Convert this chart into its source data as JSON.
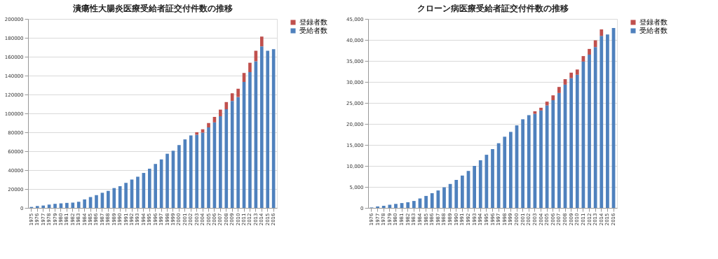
{
  "chart_data": [
    {
      "type": "bar",
      "title": "潰瘍性大腸炎医療受給者証交付件数の推移",
      "stacked": true,
      "grid": "y",
      "legend": "right",
      "categories": [
        "1975",
        "1976",
        "1977",
        "1978",
        "1979",
        "1980",
        "1981",
        "1982",
        "1983",
        "1984",
        "1985",
        "1986",
        "1987",
        "1988",
        "1989",
        "1990",
        "1991",
        "1992",
        "1993",
        "1994",
        "1995",
        "1996",
        "1997",
        "1998",
        "1999",
        "2000",
        "2001",
        "2002",
        "2003",
        "2004",
        "2005",
        "2006",
        "2007",
        "2008",
        "2009",
        "2010",
        "2011",
        "2012",
        "2013",
        "2014",
        "2015",
        "2016"
      ],
      "series": [
        {
          "name": "受給者数",
          "color": "#4f81bd",
          "values": [
            1000,
            2000,
            2500,
            3500,
            4300,
            4800,
            5300,
            5600,
            6500,
            9000,
            11500,
            13500,
            16000,
            18000,
            21000,
            23000,
            26500,
            30000,
            33000,
            37000,
            41500,
            46500,
            51300,
            57300,
            60500,
            66500,
            72500,
            76700,
            77400,
            79700,
            85200,
            90500,
            97000,
            104400,
            113200,
            117300,
            133300,
            143700,
            155200,
            171000,
            166300,
            168000
          ]
        },
        {
          "name": "登録者数",
          "color": "#c0504d",
          "values": [
            null,
            null,
            null,
            null,
            null,
            null,
            null,
            null,
            null,
            null,
            null,
            null,
            null,
            null,
            null,
            null,
            null,
            null,
            null,
            null,
            null,
            null,
            null,
            null,
            null,
            null,
            null,
            null,
            2700,
            3500,
            4700,
            5800,
            7000,
            7600,
            8100,
            8800,
            9500,
            9900,
            11100,
            10300,
            null,
            null
          ]
        }
      ],
      "ylim": [
        0,
        200000
      ],
      "yticks": [
        0,
        20000,
        40000,
        60000,
        80000,
        100000,
        120000,
        140000,
        160000,
        180000,
        200000
      ]
    },
    {
      "type": "bar",
      "title": "クローン病医療受給者証交付件数の推移",
      "stacked": true,
      "grid": "y",
      "legend": "right",
      "categories": [
        "1976",
        "1977",
        "1978",
        "1979",
        "1980",
        "1981",
        "1982",
        "1983",
        "1984",
        "1985",
        "1986",
        "1987",
        "1988",
        "1989",
        "1990",
        "1991",
        "1992",
        "1993",
        "1994",
        "1995",
        "1996",
        "1997",
        "1998",
        "1999",
        "2000",
        "2001",
        "2002",
        "2003",
        "2004",
        "2005",
        "2006",
        "2007",
        "2008",
        "2009",
        "2010",
        "2011",
        "2012",
        "2013",
        "2014",
        "2015",
        "2016"
      ],
      "series": [
        {
          "name": "受給者数",
          "color": "#4f81bd",
          "values": [
            100,
            350,
            500,
            750,
            950,
            1150,
            1350,
            1650,
            2250,
            2850,
            3500,
            4150,
            4900,
            5700,
            6650,
            7700,
            8800,
            10000,
            11350,
            12650,
            14000,
            15400,
            16950,
            18100,
            19650,
            21100,
            22100,
            22400,
            23200,
            24400,
            25650,
            27350,
            29350,
            30900,
            31700,
            34850,
            36500,
            38300,
            40950,
            41300,
            42850
          ]
        },
        {
          "name": "登録者数",
          "color": "#c0504d",
          "values": [
            null,
            null,
            null,
            null,
            null,
            null,
            null,
            null,
            null,
            null,
            null,
            null,
            null,
            null,
            null,
            null,
            null,
            null,
            null,
            null,
            null,
            null,
            null,
            null,
            null,
            null,
            null,
            600,
            650,
            900,
            1150,
            1450,
            1300,
            1300,
            1250,
            1300,
            1350,
            1600,
            1550,
            null,
            null
          ]
        }
      ],
      "ylim": [
        0,
        45000
      ],
      "yticks": [
        {
          "value": 0,
          "label": "0"
        },
        {
          "value": 5000,
          "label": "5,000"
        },
        {
          "value": 10000,
          "label": "10,000"
        },
        {
          "value": 15000,
          "label": "15,000"
        },
        {
          "value": 20000,
          "label": "20,000"
        },
        {
          "value": 25000,
          "label": "25,000"
        },
        {
          "value": 30000,
          "label": "30,000"
        },
        {
          "value": 35000,
          "label": "35,000"
        },
        {
          "value": 40000,
          "label": "40,000"
        },
        {
          "value": 45000,
          "label": "45,000"
        }
      ]
    }
  ]
}
